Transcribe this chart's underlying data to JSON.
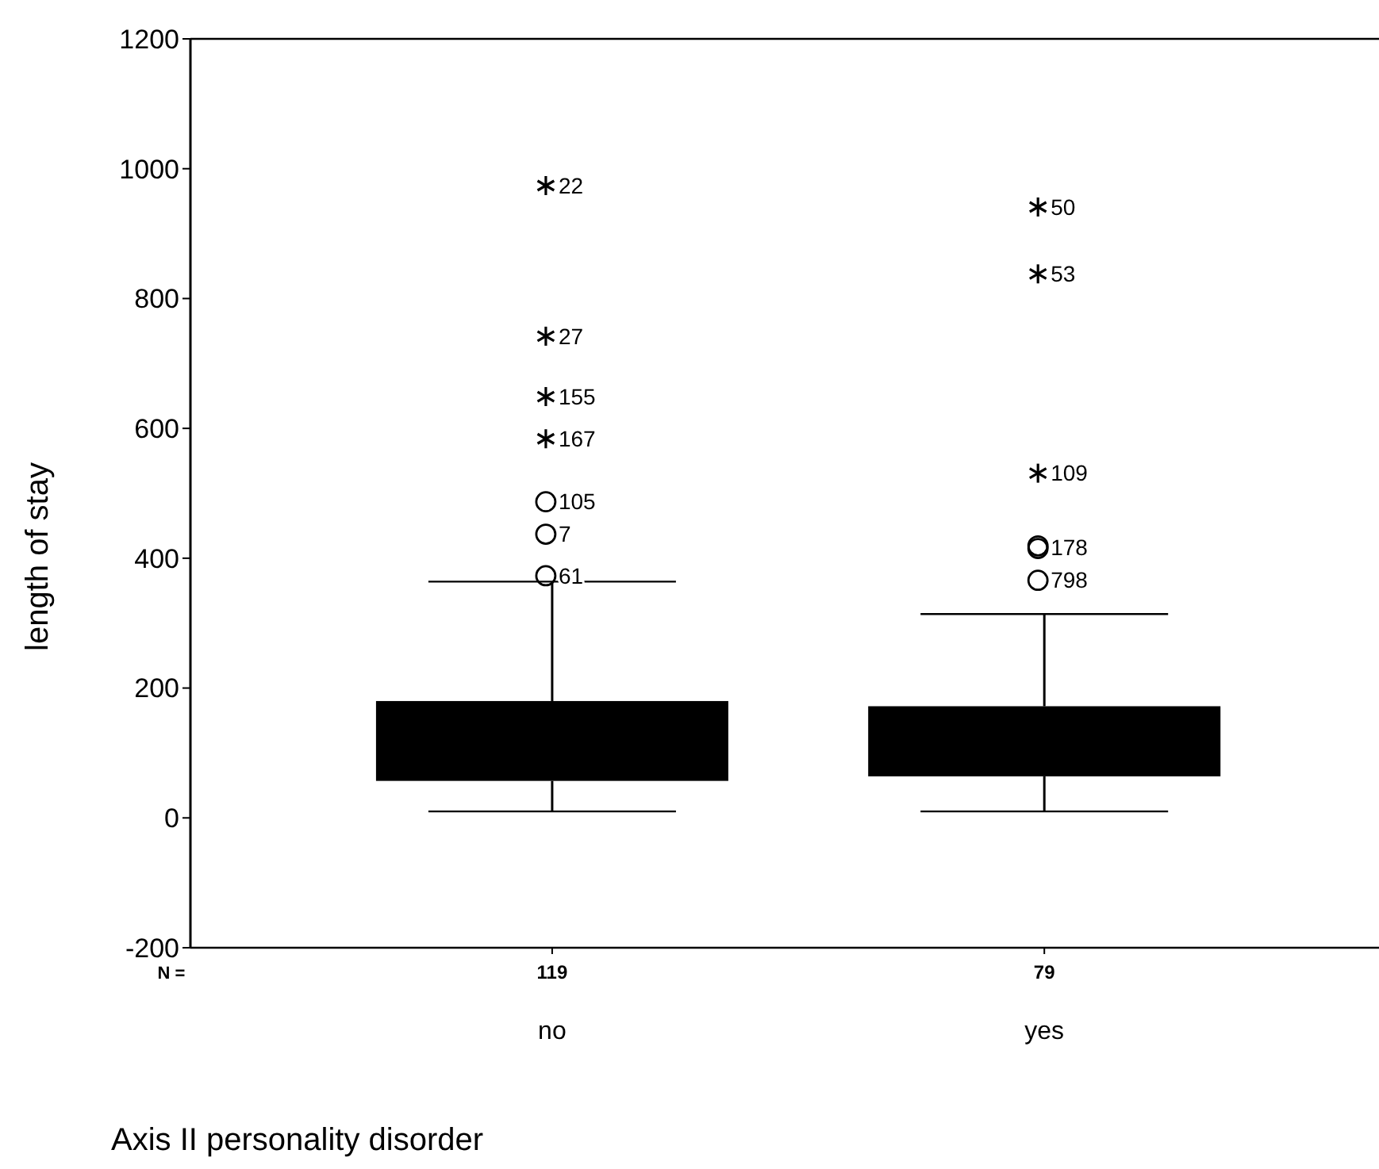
{
  "chart_data": {
    "type": "box",
    "xlabel": "Axis II personality disorder",
    "ylabel": "length of stay",
    "categories": [
      "no",
      "yes"
    ],
    "color": "#000000",
    "boxes": [
      {
        "low": 10,
        "q1": 57,
        "q3": 180,
        "high": 364
      },
      {
        "low": 10,
        "q1": 64,
        "q3": 172,
        "high": 314
      }
    ],
    "series": [
      {
        "type": "scatter",
        "marker": "cross",
        "color": "#000000",
        "x": [
          "no",
          "no",
          "no",
          "no",
          "yes",
          "yes",
          "yes"
        ],
        "values": [
          974,
          742,
          649,
          584,
          941,
          838,
          531
        ]
      },
      {
        "type": "scatter",
        "marker": "circle",
        "color": "#000000",
        "x": [
          "no",
          "no",
          "no",
          "yes",
          "yes",
          "yes"
        ],
        "values": [
          487,
          437,
          373,
          415,
          419,
          366
        ]
      }
    ],
    "ylim": [
      -200,
      1200
    ],
    "yticks": [
      -200,
      0,
      200,
      400,
      600,
      800,
      1000,
      1200
    ],
    "grid": false,
    "annotations": [
      {
        "text": "22",
        "x": "no",
        "y": 974
      },
      {
        "text": "27",
        "x": "no",
        "y": 742
      },
      {
        "text": "155",
        "x": "no",
        "y": 649
      },
      {
        "text": "167",
        "x": "no",
        "y": 584
      },
      {
        "text": "105",
        "x": "no",
        "y": 487
      },
      {
        "text": "7",
        "x": "no",
        "y": 437
      },
      {
        "text": "61",
        "x": "no",
        "y": 373
      },
      {
        "text": "50",
        "x": "yes",
        "y": 941
      },
      {
        "text": "53",
        "x": "yes",
        "y": 838
      },
      {
        "text": "109",
        "x": "yes",
        "y": 531
      },
      {
        "text": "178",
        "x": "yes",
        "y": 417
      },
      {
        "text": "798",
        "x": "yes",
        "y": 366
      },
      "N =",
      {
        "text": "119",
        "x": "no"
      },
      {
        "text": "79",
        "x": "yes"
      }
    ]
  }
}
